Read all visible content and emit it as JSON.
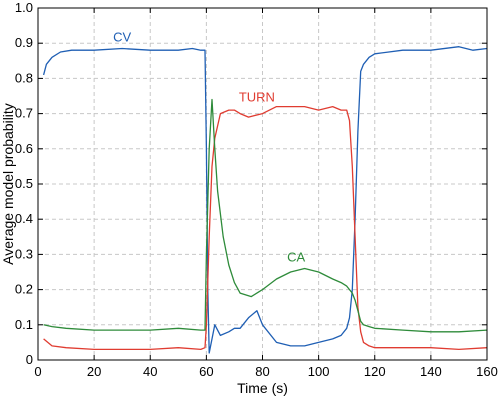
{
  "chart_data": {
    "type": "line",
    "title": "",
    "xlabel": "Time (s)",
    "ylabel": "Average model probability",
    "xlim": [
      0,
      160
    ],
    "ylim": [
      0,
      1.0
    ],
    "xticks": [
      0,
      20,
      40,
      60,
      80,
      100,
      120,
      140,
      160
    ],
    "yticks": [
      0,
      0.1,
      0.2,
      0.3,
      0.4,
      0.5,
      0.6,
      0.7,
      0.8,
      0.9,
      1.0
    ],
    "ytick_labels": [
      "0",
      "0.1",
      "0.2",
      "0.3",
      "0.4",
      "0.5",
      "0.6",
      "0.7",
      "0.8",
      "0.9",
      "1.0"
    ],
    "grid": true,
    "legend": "none",
    "series": [
      {
        "name": "CV",
        "color": "#1f5fb4",
        "label_at": [
          30,
          0.905
        ],
        "x": [
          2,
          3,
          5,
          8,
          12,
          20,
          30,
          40,
          50,
          55,
          58,
          59.5,
          60,
          60.5,
          61,
          62,
          63,
          65,
          68,
          70,
          72,
          75,
          78,
          80,
          85,
          90,
          95,
          100,
          105,
          108,
          110,
          111,
          112,
          113,
          114,
          115,
          116,
          118,
          120,
          125,
          130,
          140,
          150,
          155,
          160
        ],
        "y": [
          0.81,
          0.84,
          0.86,
          0.875,
          0.88,
          0.88,
          0.885,
          0.88,
          0.88,
          0.885,
          0.88,
          0.88,
          0.6,
          0.2,
          0.02,
          0.06,
          0.1,
          0.07,
          0.08,
          0.09,
          0.09,
          0.12,
          0.14,
          0.1,
          0.05,
          0.04,
          0.04,
          0.05,
          0.06,
          0.07,
          0.09,
          0.12,
          0.2,
          0.4,
          0.65,
          0.82,
          0.84,
          0.86,
          0.87,
          0.875,
          0.88,
          0.88,
          0.89,
          0.88,
          0.885
        ]
      },
      {
        "name": "TURN",
        "color": "#e03c31",
        "label_at": [
          78,
          0.735
        ],
        "x": [
          2,
          5,
          10,
          20,
          30,
          40,
          50,
          58,
          59.5,
          60,
          61,
          62,
          63,
          65,
          68,
          70,
          72,
          75,
          80,
          85,
          90,
          95,
          100,
          105,
          108,
          110,
          111,
          112,
          113,
          114,
          115,
          116,
          118,
          120,
          130,
          140,
          150,
          160
        ],
        "y": [
          0.06,
          0.04,
          0.035,
          0.03,
          0.03,
          0.03,
          0.035,
          0.03,
          0.035,
          0.1,
          0.35,
          0.55,
          0.63,
          0.7,
          0.71,
          0.71,
          0.7,
          0.69,
          0.7,
          0.72,
          0.72,
          0.72,
          0.71,
          0.72,
          0.71,
          0.71,
          0.68,
          0.55,
          0.35,
          0.15,
          0.08,
          0.05,
          0.04,
          0.035,
          0.035,
          0.035,
          0.03,
          0.035
        ]
      },
      {
        "name": "CA",
        "color": "#2e8b3a",
        "label_at": [
          92,
          0.28
        ],
        "x": [
          2,
          5,
          10,
          20,
          30,
          40,
          50,
          58,
          59.5,
          60,
          61,
          62,
          63,
          64,
          66,
          68,
          70,
          72,
          74,
          76,
          78,
          80,
          85,
          90,
          95,
          100,
          105,
          108,
          110,
          111,
          112,
          113,
          114,
          115,
          116,
          118,
          120,
          130,
          140,
          150,
          160
        ],
        "y": [
          0.1,
          0.095,
          0.09,
          0.085,
          0.085,
          0.085,
          0.09,
          0.085,
          0.085,
          0.3,
          0.6,
          0.74,
          0.6,
          0.48,
          0.35,
          0.27,
          0.22,
          0.19,
          0.185,
          0.18,
          0.19,
          0.2,
          0.23,
          0.25,
          0.26,
          0.25,
          0.23,
          0.22,
          0.21,
          0.2,
          0.19,
          0.17,
          0.14,
          0.11,
          0.1,
          0.095,
          0.09,
          0.085,
          0.08,
          0.08,
          0.085
        ]
      }
    ]
  }
}
